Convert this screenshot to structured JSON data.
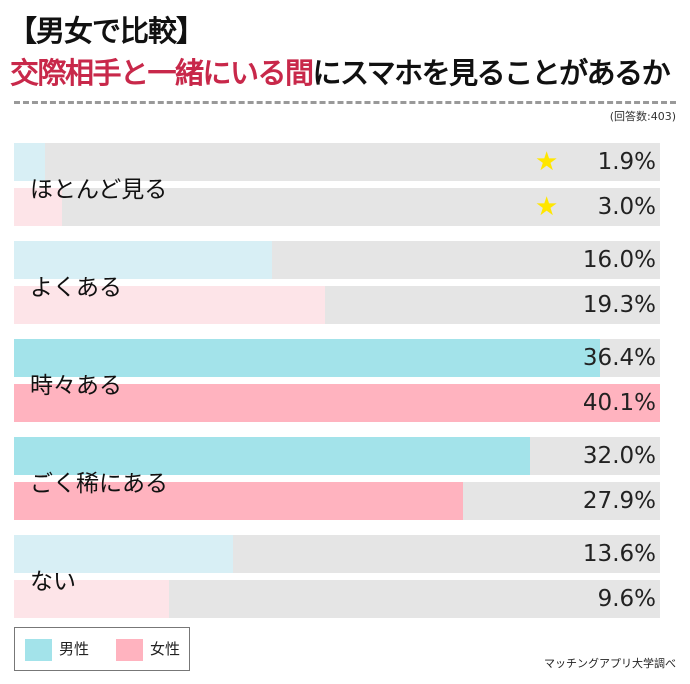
{
  "title_line1": "【男女で比較】",
  "title_line2_highlight": "交際相手と一緒にいる間",
  "title_line2_rest": "にスマホを見ることがあるか",
  "respondents": "(回答数:403)",
  "source": "マッチングアプリ大学調べ",
  "colors": {
    "male": "#a3e3ea",
    "male_pale": "#d8eff5",
    "female": "#ffb3bf",
    "female_pale": "#fde4e8",
    "track": "#e5e5e5",
    "title_accent": "#c8284a",
    "star": "#ffe600"
  },
  "chart_data": {
    "type": "bar",
    "orientation": "horizontal",
    "categories": [
      "ほとんど見る",
      "よくある",
      "時々ある",
      "ごく稀にある",
      "ない"
    ],
    "series": [
      {
        "name": "男性",
        "values": [
          1.9,
          16.0,
          36.4,
          32.0,
          13.6
        ],
        "labels": [
          "1.9%",
          "16.0%",
          "36.4%",
          "32.0%",
          "13.6%"
        ]
      },
      {
        "name": "女性",
        "values": [
          3.0,
          19.3,
          40.1,
          27.9,
          9.6
        ],
        "labels": [
          "3.0%",
          "19.3%",
          "40.1%",
          "27.9%",
          "9.6%"
        ]
      }
    ],
    "highlighted_categories": [
      "時々ある",
      "ごく稀にある"
    ],
    "starred_categories": [
      "ほとんど見る"
    ],
    "unit": "%",
    "legend": {
      "position": "bottom-left",
      "items": [
        "男性",
        "女性"
      ]
    }
  }
}
